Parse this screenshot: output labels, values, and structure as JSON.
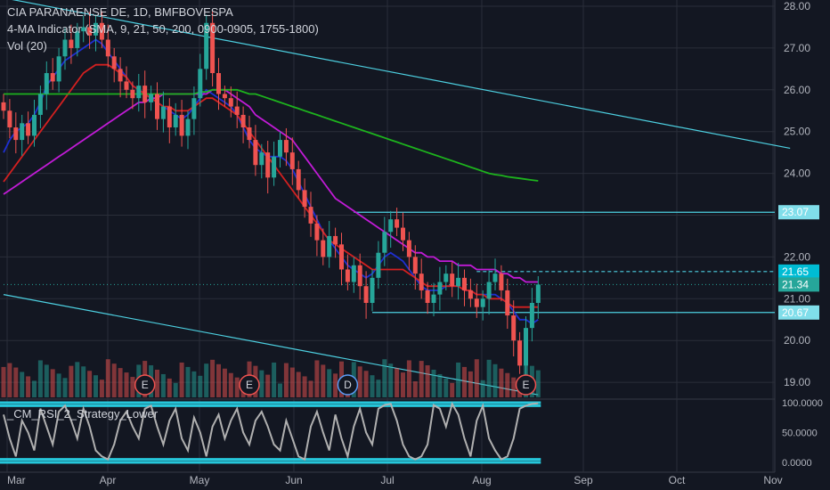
{
  "header": {
    "title": "CIA PARANAENSE DE, 1D, BMFBOVESPA",
    "indicator": "4-MA Indicator (SMA, 9, 21, 50, 200, 0900-0905, 1755-1800)",
    "volume": "Vol (20)",
    "rsi_title": "_CM_RSI_2_Strategy_Lower"
  },
  "colors": {
    "background": "#131722",
    "grid": "#2a2e39",
    "up": "#26a69a",
    "down": "#ef5350",
    "sma9": "#1e2fd1",
    "sma21": "#d32020",
    "sma50": "#c11bd6",
    "sma200": "#1db31d",
    "trendline": "#4dd0e1",
    "rsi_line": "#b0b0b0",
    "rsi_band": "#26c6da"
  },
  "chart_data": [
    {
      "type": "candlestick",
      "title": "CIA PARANAENSE DE, 1D, BMFBOVESPA",
      "x_ticks": [
        "Mar",
        "Apr",
        "May",
        "Jun",
        "Jul",
        "Aug",
        "Sep",
        "Oct",
        "Nov"
      ],
      "y_ticks": [
        "28.00",
        "27.00",
        "26.00",
        "25.00",
        "24.00",
        "23.00",
        "22.00",
        "21.00",
        "20.00",
        "19.00"
      ],
      "ylim": [
        18.6,
        28.1
      ],
      "price_labels": [
        {
          "text": "23.07",
          "value": 23.07,
          "color": "#80deea"
        },
        {
          "text": "21.65",
          "value": 21.65,
          "color": "#00bcd4"
        },
        {
          "text": "21.34",
          "value": 21.34,
          "color": "#26a69a"
        },
        {
          "text": "20.67",
          "value": 20.67,
          "color": "#80deea"
        }
      ],
      "horizontal_levels": [
        {
          "value": 23.07,
          "from_day": 57,
          "style": "solid"
        },
        {
          "value": 21.65,
          "from_day": 77,
          "style": "dashed"
        },
        {
          "value": 20.67,
          "from_day": 60,
          "style": "solid"
        },
        {
          "value": 21.34,
          "from_day": 0,
          "style": "dotted"
        }
      ],
      "trendlines": [
        {
          "from": [
            0,
            28.2
          ],
          "to": [
            128,
            24.6
          ]
        },
        {
          "from": [
            0,
            21.1
          ],
          "to": [
            87,
            18.7
          ]
        }
      ],
      "closes": [
        25.5,
        25.1,
        24.8,
        25.2,
        24.9,
        25.4,
        25.9,
        26.4,
        26.2,
        26.8,
        27.2,
        27.0,
        27.4,
        27.5,
        27.3,
        27.6,
        27.2,
        26.8,
        26.5,
        26.2,
        26.0,
        25.8,
        26.1,
        25.7,
        25.9,
        25.3,
        25.6,
        25.1,
        25.4,
        24.9,
        25.3,
        25.8,
        26.5,
        27.6,
        26.4,
        25.9,
        25.8,
        25.6,
        25.4,
        25.1,
        24.8,
        24.2,
        24.5,
        23.9,
        24.4,
        24.8,
        24.5,
        24.1,
        23.6,
        23.2,
        22.8,
        22.4,
        22.0,
        22.5,
        22.3,
        21.7,
        21.4,
        21.8,
        21.3,
        20.9,
        21.5,
        22.1,
        22.6,
        22.9,
        22.7,
        22.4,
        22.0,
        21.6,
        21.2,
        20.9,
        21.1,
        21.4,
        21.6,
        21.3,
        21.5,
        21.2,
        21.0,
        20.8,
        21.0,
        21.4,
        21.6,
        21.2,
        20.6,
        20.0,
        19.4,
        20.3,
        20.9,
        21.34
      ],
      "sma": [
        {
          "name": "SMA 9",
          "color": "#1e2fd1",
          "values": [
            24.5,
            24.8,
            25.0,
            25.1,
            25.2,
            25.4,
            25.7,
            26.1,
            26.3,
            26.5,
            26.7,
            26.8,
            26.9,
            27.0,
            27.1,
            27.2,
            27.1,
            26.9,
            26.7,
            26.5,
            26.3,
            26.1,
            26.0,
            25.9,
            25.8,
            25.7,
            25.6,
            25.5,
            25.4,
            25.3,
            25.4,
            25.6,
            25.8,
            26.0,
            25.9,
            25.8,
            25.7,
            25.6,
            25.4,
            25.1,
            24.8,
            24.6,
            24.5,
            24.4,
            24.4,
            24.4,
            24.3,
            24.1,
            23.8,
            23.5,
            23.2,
            22.9,
            22.6,
            22.4,
            22.2,
            22.0,
            21.8,
            21.7,
            21.6,
            21.5,
            21.6,
            21.8,
            22.0,
            22.1,
            22.0,
            21.9,
            21.7,
            21.5,
            21.3,
            21.2,
            21.2,
            21.2,
            21.3,
            21.3,
            21.3,
            21.2,
            21.2,
            21.1,
            21.1,
            21.1,
            21.1,
            21.0,
            20.9,
            20.7,
            20.5,
            20.5,
            20.4,
            20.5
          ]
        },
        {
          "name": "SMA 21",
          "color": "#d32020",
          "values": [
            23.8,
            24.0,
            24.2,
            24.4,
            24.6,
            24.8,
            25.0,
            25.2,
            25.4,
            25.6,
            25.8,
            26.0,
            26.2,
            26.4,
            26.5,
            26.6,
            26.6,
            26.6,
            26.5,
            26.4,
            26.3,
            26.1,
            26.0,
            25.9,
            25.8,
            25.7,
            25.6,
            25.6,
            25.5,
            25.5,
            25.5,
            25.6,
            25.7,
            25.8,
            25.8,
            25.7,
            25.6,
            25.5,
            25.4,
            25.2,
            25.0,
            24.8,
            24.6,
            24.4,
            24.2,
            24.0,
            23.8,
            23.6,
            23.4,
            23.2,
            23.0,
            22.8,
            22.6,
            22.4,
            22.3,
            22.2,
            22.1,
            22.0,
            21.9,
            21.8,
            21.7,
            21.7,
            21.7,
            21.7,
            21.7,
            21.7,
            21.6,
            21.5,
            21.4,
            21.3,
            21.3,
            21.3,
            21.3,
            21.3,
            21.3,
            21.2,
            21.2,
            21.1,
            21.1,
            21.0,
            21.0,
            21.0,
            20.9,
            20.8,
            20.8,
            20.8,
            20.8,
            20.8
          ]
        },
        {
          "name": "SMA 50",
          "color": "#c11bd6",
          "values": [
            23.5,
            23.6,
            23.7,
            23.8,
            23.9,
            24.0,
            24.1,
            24.2,
            24.3,
            24.4,
            24.5,
            24.6,
            24.7,
            24.8,
            24.9,
            25.0,
            25.1,
            25.2,
            25.3,
            25.4,
            25.5,
            25.6,
            25.7,
            25.7,
            25.8,
            25.8,
            25.9,
            25.9,
            25.9,
            25.9,
            25.9,
            25.9,
            25.9,
            25.9,
            26.0,
            26.0,
            26.0,
            25.9,
            25.8,
            25.7,
            25.6,
            25.4,
            25.3,
            25.2,
            25.1,
            25.0,
            24.9,
            24.8,
            24.6,
            24.4,
            24.2,
            24.0,
            23.8,
            23.6,
            23.4,
            23.3,
            23.2,
            23.1,
            23.0,
            22.9,
            22.8,
            22.7,
            22.6,
            22.5,
            22.4,
            22.3,
            22.2,
            22.1,
            22.1,
            22.0,
            22.0,
            21.9,
            21.9,
            21.9,
            21.8,
            21.8,
            21.8,
            21.7,
            21.7,
            21.7,
            21.7,
            21.6,
            21.6,
            21.5,
            21.5,
            21.4,
            21.4,
            21.4
          ]
        },
        {
          "name": "SMA 200",
          "color": "#1db31d",
          "values": [
            25.9,
            25.9,
            25.9,
            25.9,
            25.9,
            25.9,
            25.9,
            25.9,
            25.9,
            25.9,
            25.9,
            25.9,
            25.9,
            25.9,
            25.9,
            25.9,
            25.9,
            25.9,
            25.9,
            25.9,
            25.9,
            25.9,
            25.9,
            25.9,
            25.9,
            25.9,
            25.9,
            25.9,
            25.9,
            25.9,
            25.9,
            25.9,
            25.95,
            25.95,
            26.0,
            26.0,
            26.0,
            26.0,
            26.0,
            25.95,
            25.9,
            25.9,
            25.85,
            25.8,
            25.75,
            25.7,
            25.65,
            25.6,
            25.55,
            25.5,
            25.45,
            25.4,
            25.35,
            25.3,
            25.25,
            25.2,
            25.15,
            25.1,
            25.05,
            25.0,
            24.95,
            24.9,
            24.85,
            24.8,
            24.75,
            24.7,
            24.65,
            24.6,
            24.55,
            24.5,
            24.45,
            24.4,
            24.35,
            24.3,
            24.25,
            24.2,
            24.15,
            24.1,
            24.05,
            24.0,
            23.97,
            23.95,
            23.92,
            23.9,
            23.88,
            23.86,
            23.84,
            23.82
          ]
        }
      ],
      "earnings_markers": [
        "E",
        "E",
        "D",
        "E"
      ],
      "volume_scale_max": 100
    },
    {
      "type": "line",
      "title": "_CM_RSI_2_Strategy_Lower",
      "y_ticks": [
        "100.0000",
        "50.0000",
        "0.0000"
      ],
      "ylim": [
        0,
        100
      ],
      "bands": [
        100,
        95,
        5,
        0
      ],
      "values": [
        80,
        40,
        10,
        70,
        50,
        20,
        90,
        60,
        30,
        85,
        95,
        70,
        40,
        90,
        60,
        20,
        10,
        5,
        30,
        70,
        85,
        60,
        40,
        90,
        95,
        60,
        30,
        70,
        90,
        40,
        20,
        75,
        50,
        10,
        60,
        80,
        40,
        70,
        90,
        50,
        30,
        70,
        85,
        60,
        30,
        20,
        70,
        40,
        10,
        5,
        60,
        85,
        50,
        20,
        80,
        40,
        10,
        60,
        90,
        50,
        30,
        90,
        96,
        98,
        70,
        30,
        10,
        5,
        10,
        30,
        96,
        90,
        60,
        98,
        80,
        40,
        10,
        70,
        95,
        40,
        20,
        5,
        10,
        40,
        90,
        95,
        98,
        99
      ]
    }
  ]
}
